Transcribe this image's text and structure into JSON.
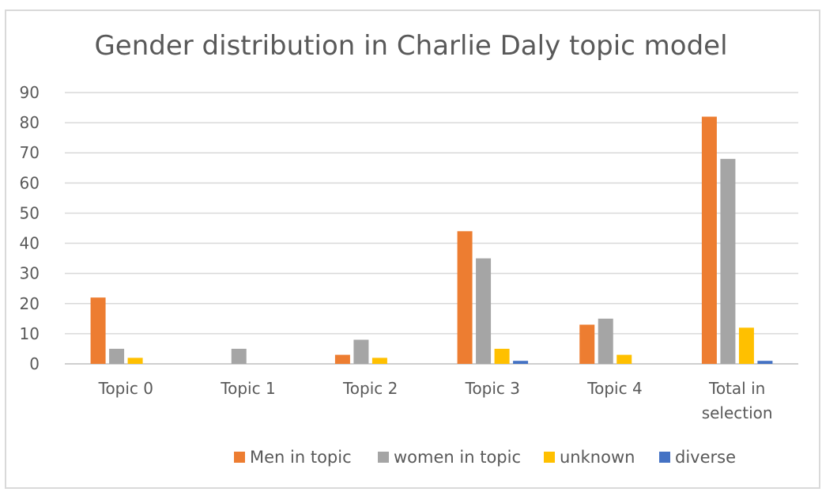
{
  "chart_data": {
    "type": "bar",
    "title": "Gender distribution in Charlie Daly topic model",
    "xlabel": "",
    "ylabel": "",
    "ylim": [
      0,
      90
    ],
    "yticks": [
      0,
      10,
      20,
      30,
      40,
      50,
      60,
      70,
      80,
      90
    ],
    "grid": true,
    "legend_position": "bottom",
    "categories": [
      "Topic 0",
      "Topic 1",
      "Topic 2",
      "Topic 3",
      "Topic 4",
      "Total in selection"
    ],
    "series": [
      {
        "name": "Men in topic",
        "color": "#ed7d31",
        "values": [
          22,
          0,
          3,
          44,
          13,
          82
        ]
      },
      {
        "name": "women in topic",
        "color": "#a5a5a5",
        "values": [
          5,
          5,
          8,
          35,
          15,
          68
        ]
      },
      {
        "name": "unknown",
        "color": "#ffc000",
        "values": [
          2,
          0,
          2,
          5,
          3,
          12
        ]
      },
      {
        "name": "diverse",
        "color": "#4472c4",
        "values": [
          0,
          0,
          0,
          1,
          0,
          1
        ]
      }
    ]
  }
}
